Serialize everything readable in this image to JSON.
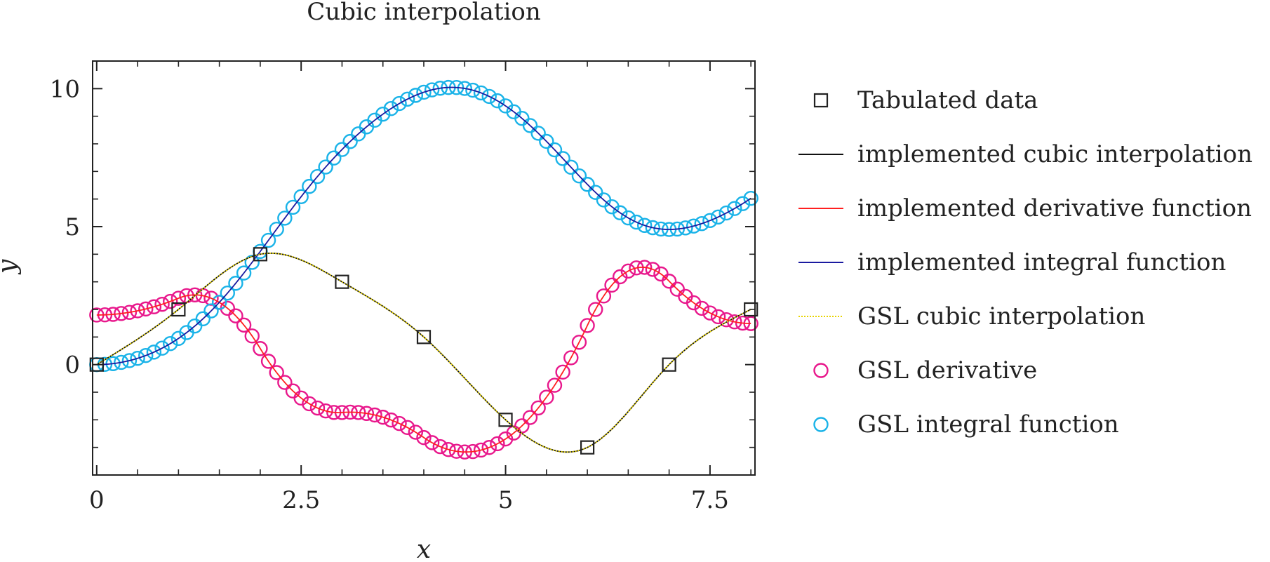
{
  "chart_data": {
    "type": "line",
    "title": "Cubic interpolation",
    "xlabel": "x",
    "ylabel": "y",
    "xlim": [
      -0.05,
      8.05
    ],
    "ylim": [
      -4,
      11
    ],
    "xticks": [
      {
        "value": 0,
        "label": "0"
      },
      {
        "value": 2.5,
        "label": "2.5"
      },
      {
        "value": 5,
        "label": "5"
      },
      {
        "value": 7.5,
        "label": "7.5"
      }
    ],
    "yticks": [
      {
        "value": 0,
        "label": "0"
      },
      {
        "value": 5,
        "label": "5"
      },
      {
        "value": 10,
        "label": "10"
      }
    ],
    "x_minor_step": 0.5,
    "y_minor_step": 1,
    "grid": false,
    "legend_position": "right-outside",
    "tabulated": {
      "x": [
        0,
        1,
        2,
        3,
        4,
        5,
        6,
        7,
        8
      ],
      "y": [
        0,
        2,
        4,
        3,
        1,
        -2,
        -3,
        0,
        2
      ]
    },
    "series": [
      {
        "name": "Tabulated data",
        "style": "square-marker",
        "color": "#222222",
        "ref": "tabulated"
      },
      {
        "name": "implemented cubic interpolation",
        "style": "line",
        "color": "#111111",
        "ref": "interp"
      },
      {
        "name": "implemented derivative function",
        "style": "line",
        "color": "#ff2020",
        "ref": "deriv"
      },
      {
        "name": "implemented integral function",
        "style": "line",
        "color": "#1a1aa0",
        "ref": "integ"
      },
      {
        "name": "GSL cubic interpolation",
        "style": "dotted",
        "color": "#e8d400",
        "ref": "interp"
      },
      {
        "name": "GSL derivative",
        "style": "circle-marker",
        "color": "#e8188c",
        "ref": "deriv"
      },
      {
        "name": "GSL integral function",
        "style": "circle-marker",
        "color": "#1ab3e8",
        "ref": "integ"
      }
    ]
  }
}
